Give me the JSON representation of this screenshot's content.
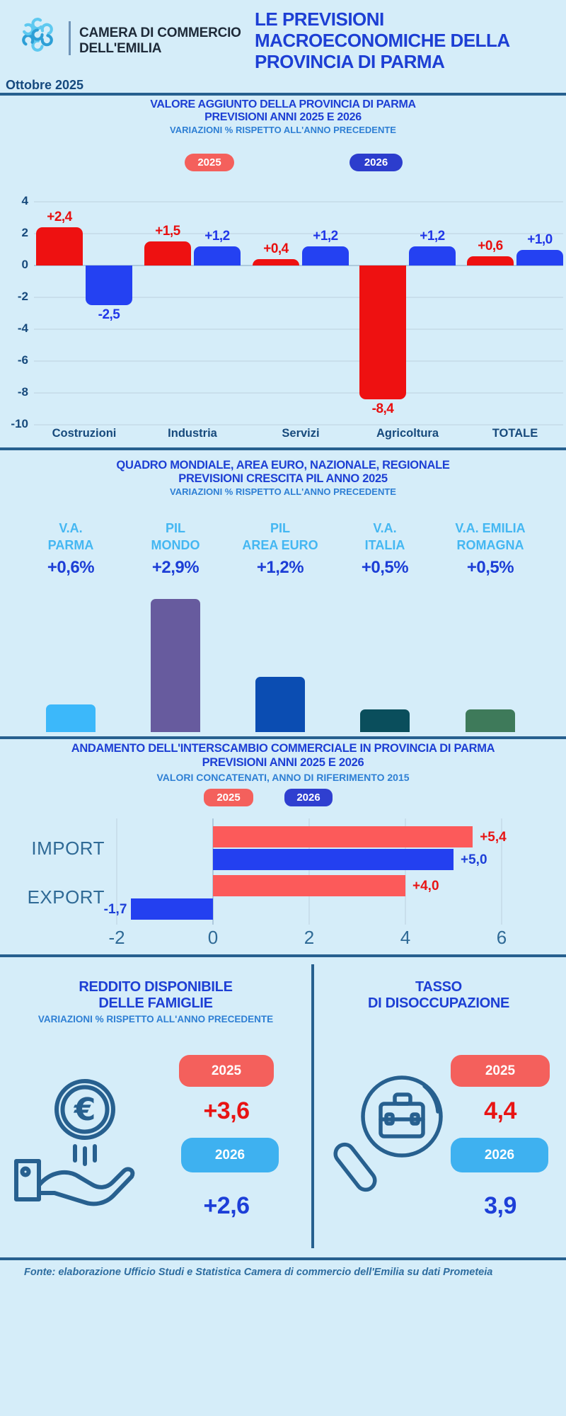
{
  "header": {
    "org_line1": "CAMERA DI COMMERCIO",
    "org_line2": "DELL'EMILIA",
    "title_line1": "LE PREVISIONI",
    "title_line2": "MACROECONOMICHE DELLA",
    "title_line3": "PROVINCIA DI PARMA",
    "date": "Ottobre 2025"
  },
  "chart_data": [
    {
      "type": "bar",
      "title": "VALORE AGGIUNTO DELLA PROVINCIA DI PARMA",
      "title2": "PREVISIONI ANNI 2025 E 2026",
      "note": "VARIAZIONI % RISPETTO ALL'ANNO PRECEDENTE",
      "categories": [
        "Costruzioni",
        "Industria",
        "Servizi",
        "Agricoltura",
        "TOTALE"
      ],
      "series": [
        {
          "name": "2025",
          "color": "#ee1111",
          "label_color": "#e80f0f",
          "pill_color": "#f4605c",
          "values": [
            2.4,
            1.5,
            0.4,
            -8.4,
            0.6
          ],
          "labels": [
            "+2,4",
            "+1,5",
            "+0,4",
            "-8,4",
            "+0,6"
          ]
        },
        {
          "name": "2026",
          "color": "#2441f2",
          "label_color": "#2036e8",
          "pill_color": "#2c3dcd",
          "values": [
            -2.5,
            1.2,
            1.2,
            1.2,
            1.0
          ],
          "labels": [
            "-2,5",
            "+1,2",
            "+1,2",
            "+1,2",
            "+1,0"
          ]
        }
      ],
      "ylim": [
        -10,
        4
      ],
      "yticks": [
        4,
        2,
        0,
        -2,
        -4,
        -6,
        -8,
        -10
      ],
      "grid": true,
      "legend_position": "top"
    },
    {
      "type": "bar",
      "title": "QUADRO MONDIALE, AREA EURO, NAZIONALE, REGIONALE",
      "title2": "PREVISIONI CRESCITA PIL ANNO 2025",
      "note": "VARIAZIONI % RISPETTO ALL'ANNO PRECEDENTE",
      "items": [
        {
          "label_line1": "V.A.",
          "label_line2": "PARMA",
          "value": 0.6,
          "value_label": "+0,6%",
          "color": "#3cb8fa"
        },
        {
          "label_line1": "PIL",
          "label_line2": "MONDO",
          "value": 2.9,
          "value_label": "+2,9%",
          "color": "#675b9e"
        },
        {
          "label_line1": "PIL",
          "label_line2": "AREA EURO",
          "value": 1.2,
          "value_label": "+1,2%",
          "color": "#0b4db2"
        },
        {
          "label_line1": "V.A.",
          "label_line2": "ITALIA",
          "value": 0.5,
          "value_label": "+0,5%",
          "color": "#0a4e5c"
        },
        {
          "label_line1": "V.A. EMILIA",
          "label_line2": "ROMAGNA",
          "value": 0.5,
          "value_label": "+0,5%",
          "color": "#3e7a5a"
        }
      ],
      "grid": false,
      "legend_position": "none"
    },
    {
      "type": "bar-horizontal",
      "title": "ANDAMENTO DELL'INTERSCAMBIO COMMERCIALE IN PROVINCIA DI PARMA",
      "title2": "PREVISIONI ANNI  2025 E 2026",
      "note": "VALORI CONCATENATI, ANNO DI RIFERIMENTO 2015",
      "categories": [
        "IMPORT",
        "EXPORT"
      ],
      "series": [
        {
          "name": "2025",
          "color": "#fc5a5a",
          "label_color": "#e81414",
          "pill_color": "#f4605c",
          "values": [
            5.4,
            4.0
          ],
          "labels": [
            "+5,4",
            "+4,0"
          ]
        },
        {
          "name": "2026",
          "color": "#2340f0",
          "label_color": "#1d3fd8",
          "pill_color": "#2f3fd0",
          "values": [
            5.0,
            -1.7
          ],
          "labels": [
            "+5,0",
            "-1,7"
          ]
        }
      ],
      "xticks": [
        -2,
        0,
        2,
        4,
        6
      ],
      "xlim": [
        -2.6,
        7
      ],
      "grid": true,
      "legend_position": "top"
    }
  ],
  "cards": [
    {
      "title_line1": "REDDITO DISPONIBILE",
      "title_line2": "DELLE FAMIGLIE",
      "note": "VARIAZIONI % RISPETTO ALL'ANNO PRECEDENTE",
      "icon": "hand-euro-coin-icon",
      "rows": [
        {
          "year": "2025",
          "pill_color": "#f4605c",
          "value": "+3,6",
          "value_color": "#e81414"
        },
        {
          "year": "2026",
          "pill_color": "#3eb1f0",
          "value": "+2,6",
          "value_color": "#1d3fd8"
        }
      ]
    },
    {
      "title_line1": "TASSO",
      "title_line2": "DI DISOCCUPAZIONE",
      "note": "",
      "icon": "magnifier-briefcase-icon",
      "rows": [
        {
          "year": "2025",
          "pill_color": "#f4605c",
          "value": "4,4",
          "value_color": "#e81414"
        },
        {
          "year": "2026",
          "pill_color": "#3eb1f0",
          "value": "3,9",
          "value_color": "#1d3fd8"
        }
      ]
    }
  ],
  "footer": {
    "source": "Fonte: elaborazione Ufficio Studi e Statistica Camera di commercio dell'Emilia su dati Prometeia"
  },
  "colors": {
    "background": "#d5edf9",
    "divider": "#27608f",
    "title_blue": "#1d3fd4",
    "note_blue": "#2e7fd4",
    "dark_navy": "#174a7c",
    "axis_steel": "#2f6a96",
    "header_cyan": "#44b7f2",
    "value_blue": "#1c3ed6",
    "icon_stroke": "#27608f"
  }
}
